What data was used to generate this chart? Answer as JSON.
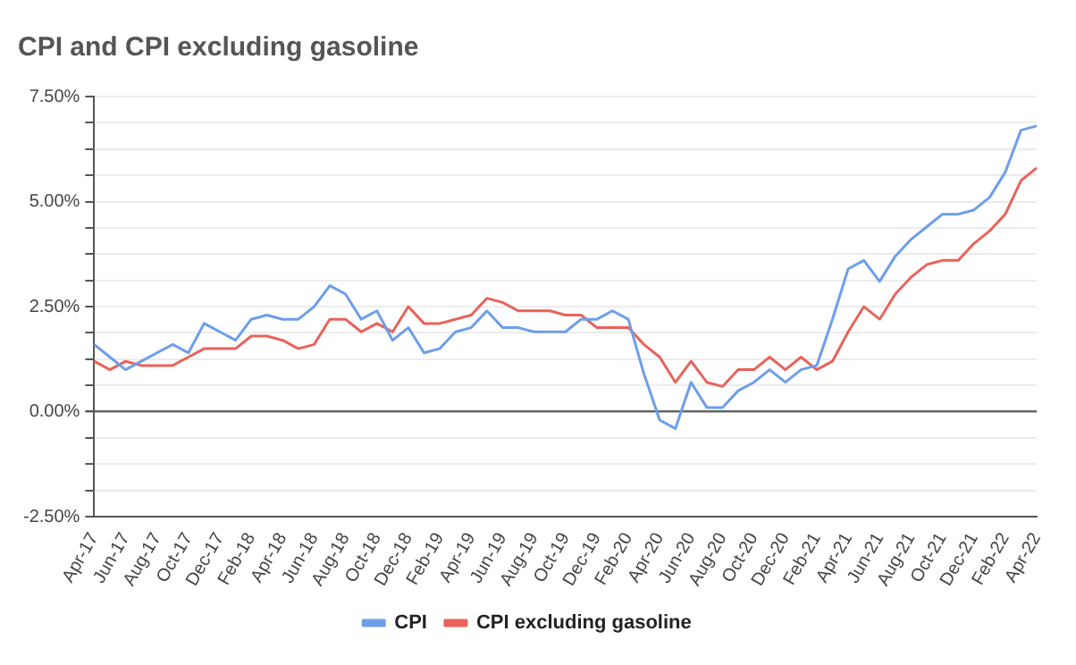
{
  "chart_data": {
    "type": "line",
    "title": "CPI and CPI excluding gasoline",
    "categories": [
      "Apr-17",
      null,
      "Jun-17",
      null,
      "Aug-17",
      null,
      "Oct-17",
      null,
      "Dec-17",
      null,
      "Feb-18",
      null,
      "Apr-18",
      null,
      "Jun-18",
      null,
      "Aug-18",
      null,
      "Oct-18",
      null,
      "Dec-18",
      null,
      "Feb-19",
      null,
      "Apr-19",
      null,
      "Jun-19",
      null,
      "Aug-19",
      null,
      "Oct-19",
      null,
      "Dec-19",
      null,
      "Feb-20",
      null,
      "Apr-20",
      null,
      "Jun-20",
      null,
      "Aug-20",
      null,
      "Oct-20",
      null,
      "Dec-20",
      null,
      "Feb-21",
      null,
      "Apr-21",
      null,
      "Jun-21",
      null,
      "Aug-21",
      null,
      "Oct-21",
      null,
      "Dec-21",
      null,
      "Feb-22",
      null,
      "Apr-22"
    ],
    "series": [
      {
        "name": "CPI",
        "color": "#6d9eeb",
        "values": [
          1.6,
          1.3,
          1.0,
          1.2,
          1.4,
          1.6,
          1.4,
          2.1,
          1.9,
          1.7,
          2.2,
          2.3,
          2.2,
          2.2,
          2.5,
          3.0,
          2.8,
          2.2,
          2.4,
          1.7,
          2.0,
          1.4,
          1.5,
          1.9,
          2.0,
          2.4,
          2.0,
          2.0,
          1.9,
          1.9,
          1.9,
          2.2,
          2.2,
          2.4,
          2.2,
          0.9,
          -0.2,
          -0.4,
          0.7,
          0.1,
          0.1,
          0.5,
          0.7,
          1.0,
          0.7,
          1.0,
          1.1,
          2.2,
          3.4,
          3.6,
          3.1,
          3.7,
          4.1,
          4.4,
          4.7,
          4.7,
          4.8,
          5.1,
          5.7,
          6.7,
          6.8
        ]
      },
      {
        "name": "CPI excluding gasoline",
        "color": "#e8635a",
        "values": [
          1.2,
          1.0,
          1.2,
          1.1,
          1.1,
          1.1,
          1.3,
          1.5,
          1.5,
          1.5,
          1.8,
          1.8,
          1.7,
          1.5,
          1.6,
          2.2,
          2.2,
          1.9,
          2.1,
          1.9,
          2.5,
          2.1,
          2.1,
          2.2,
          2.3,
          2.7,
          2.6,
          2.4,
          2.4,
          2.4,
          2.3,
          2.3,
          2.0,
          2.0,
          2.0,
          1.6,
          1.3,
          0.7,
          1.2,
          0.7,
          0.6,
          1.0,
          1.0,
          1.3,
          1.0,
          1.3,
          1.0,
          1.2,
          1.9,
          2.5,
          2.2,
          2.8,
          3.2,
          3.5,
          3.6,
          3.6,
          4.0,
          4.3,
          4.7,
          5.5,
          5.8
        ]
      }
    ],
    "ylim": [
      -2.5,
      7.5
    ],
    "yticks": [
      {
        "value": -2.5,
        "label": "-2.50%"
      },
      {
        "value": -1.875,
        "label": null
      },
      {
        "value": -1.25,
        "label": null
      },
      {
        "value": -0.625,
        "label": null
      },
      {
        "value": 0,
        "label": "0.00%"
      },
      {
        "value": 0.625,
        "label": null
      },
      {
        "value": 1.25,
        "label": null
      },
      {
        "value": 1.875,
        "label": null
      },
      {
        "value": 2.5,
        "label": "2.50%"
      },
      {
        "value": 3.125,
        "label": null
      },
      {
        "value": 3.75,
        "label": null
      },
      {
        "value": 4.375,
        "label": null
      },
      {
        "value": 5,
        "label": "5.00%"
      },
      {
        "value": 5.625,
        "label": null
      },
      {
        "value": 6.25,
        "label": null
      },
      {
        "value": 6.875,
        "label": null
      },
      {
        "value": 7.5,
        "label": "7.50%"
      }
    ],
    "grid": "y",
    "legend": "bottom",
    "marker": "none",
    "line_style": "solid"
  }
}
